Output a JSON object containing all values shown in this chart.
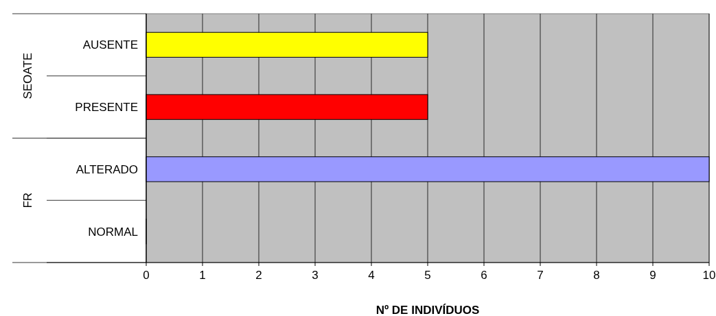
{
  "chart_data": {
    "type": "bar",
    "orientation": "horizontal",
    "xlabel": "Nº DE INDIVÍDUOS",
    "categories": [
      "AUSENTE",
      "PRESENTE",
      "ALTERADO",
      "NORMAL"
    ],
    "values": [
      5,
      5,
      10,
      0
    ],
    "colors": [
      "#ffff00",
      "#ff0000",
      "#9999ff",
      "#000080"
    ],
    "xlim": [
      0,
      10
    ],
    "xticks": [
      0,
      1,
      2,
      3,
      4,
      5,
      6,
      7,
      8,
      9,
      10
    ],
    "grid": "x",
    "annotations": [
      "SEOATE",
      "FR"
    ]
  }
}
